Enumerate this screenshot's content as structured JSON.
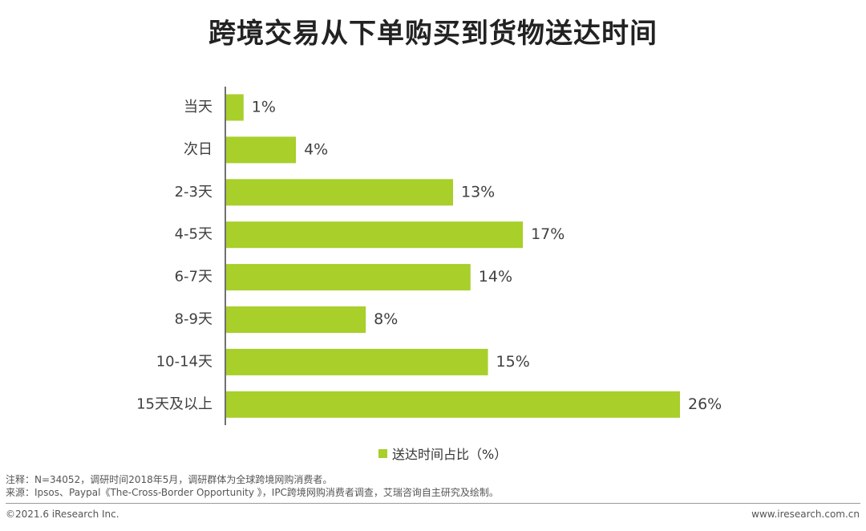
{
  "chart_data": {
    "type": "bar",
    "orientation": "horizontal",
    "title": "跨境交易从下单购买到货物送达时间",
    "categories": [
      "当天",
      "次日",
      "2-3天",
      "4-5天",
      "6-7天",
      "8-9天",
      "10-14天",
      "15天及以上"
    ],
    "series": [
      {
        "name": "送达时间占比（%）",
        "values": [
          1,
          4,
          13,
          17,
          14,
          8,
          15,
          26
        ],
        "labels": [
          "1%",
          "4%",
          "13%",
          "17%",
          "14%",
          "8%",
          "15%",
          "26%"
        ],
        "color": "#a8cf2a"
      }
    ],
    "xlim": [
      0,
      26
    ],
    "grid": false,
    "legend_position": "bottom"
  },
  "notes": {
    "note": "注释：N=34052，调研时间2018年5月，调研群体为全球跨境网购消费者。",
    "source": "来源：Ipsos、Paypal《The-Cross-Border Opportunity 》，IPC跨境网购消费者调查，艾瑞咨询自主研究及绘制。"
  },
  "footer": {
    "copyright": "©2021.6 iResearch Inc.",
    "website": "www.iresearch.com.cn"
  },
  "colors": {
    "bar": "#a8cf2a",
    "axis": "#404040"
  }
}
